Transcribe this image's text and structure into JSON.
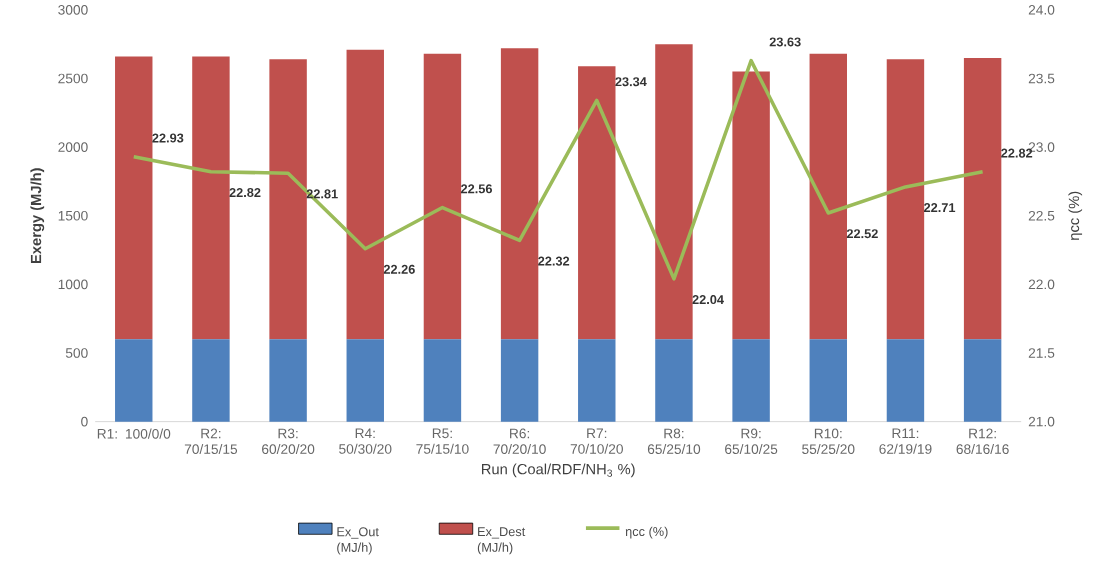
{
  "chart_data": {
    "type": "bar",
    "stacked": true,
    "categories": [
      "R1: 100/0/0",
      "R2: 70/15/15",
      "R3: 60/20/20",
      "R4: 50/30/20",
      "R5: 75/15/10",
      "R6: 70/20/10",
      "R7: 70/10/20",
      "R8: 65/25/10",
      "R9: 65/10/25",
      "R10: 55/25/20",
      "R11: 62/19/19",
      "R12: 68/16/16"
    ],
    "xlabel": "Run (Coal/RDF/NH$_{3}$ %)",
    "ylabel": "Exergy (MJ/h)",
    "y2label": "ηcc (%)",
    "series": [
      {
        "name": "Ex_Out (MJ/h)",
        "color": "#4f81bd",
        "values": [
          600,
          600,
          600,
          600,
          600,
          600,
          600,
          600,
          600,
          600,
          600,
          600
        ]
      },
      {
        "name": "Ex_Dest (MJ/h)",
        "color": "#c0504d",
        "values": [
          2060,
          2060,
          2040,
          2110,
          2080,
          2120,
          1990,
          2150,
          1950,
          2080,
          2040,
          2050
        ]
      },
      {
        "name": "ηcc (%)",
        "type": "line",
        "axis": "y2",
        "color": "#9bbb59",
        "values": [
          22.93,
          22.82,
          22.81,
          22.26,
          22.56,
          22.32,
          23.34,
          22.04,
          23.63,
          22.52,
          22.71,
          22.82
        ],
        "data_labels": true
      }
    ],
    "ylim": [
      0,
      3000
    ],
    "yticks": [
      0,
      500,
      1000,
      1500,
      2000,
      2500,
      3000
    ],
    "y2lim": [
      21,
      24
    ],
    "y2ticks": [
      {
        "value": 21,
        "label": "21.0"
      },
      {
        "value": 21.5,
        "label": "21.5"
      },
      {
        "value": 22,
        "label": "22.0"
      },
      {
        "value": 22.5,
        "label": "22.5"
      },
      {
        "value": 23,
        "label": "23.0"
      },
      {
        "value": 23.5,
        "label": "23.5"
      },
      {
        "value": 24,
        "label": "24.0"
      }
    ],
    "legend": "bottom",
    "grid": false,
    "marker": "none"
  }
}
